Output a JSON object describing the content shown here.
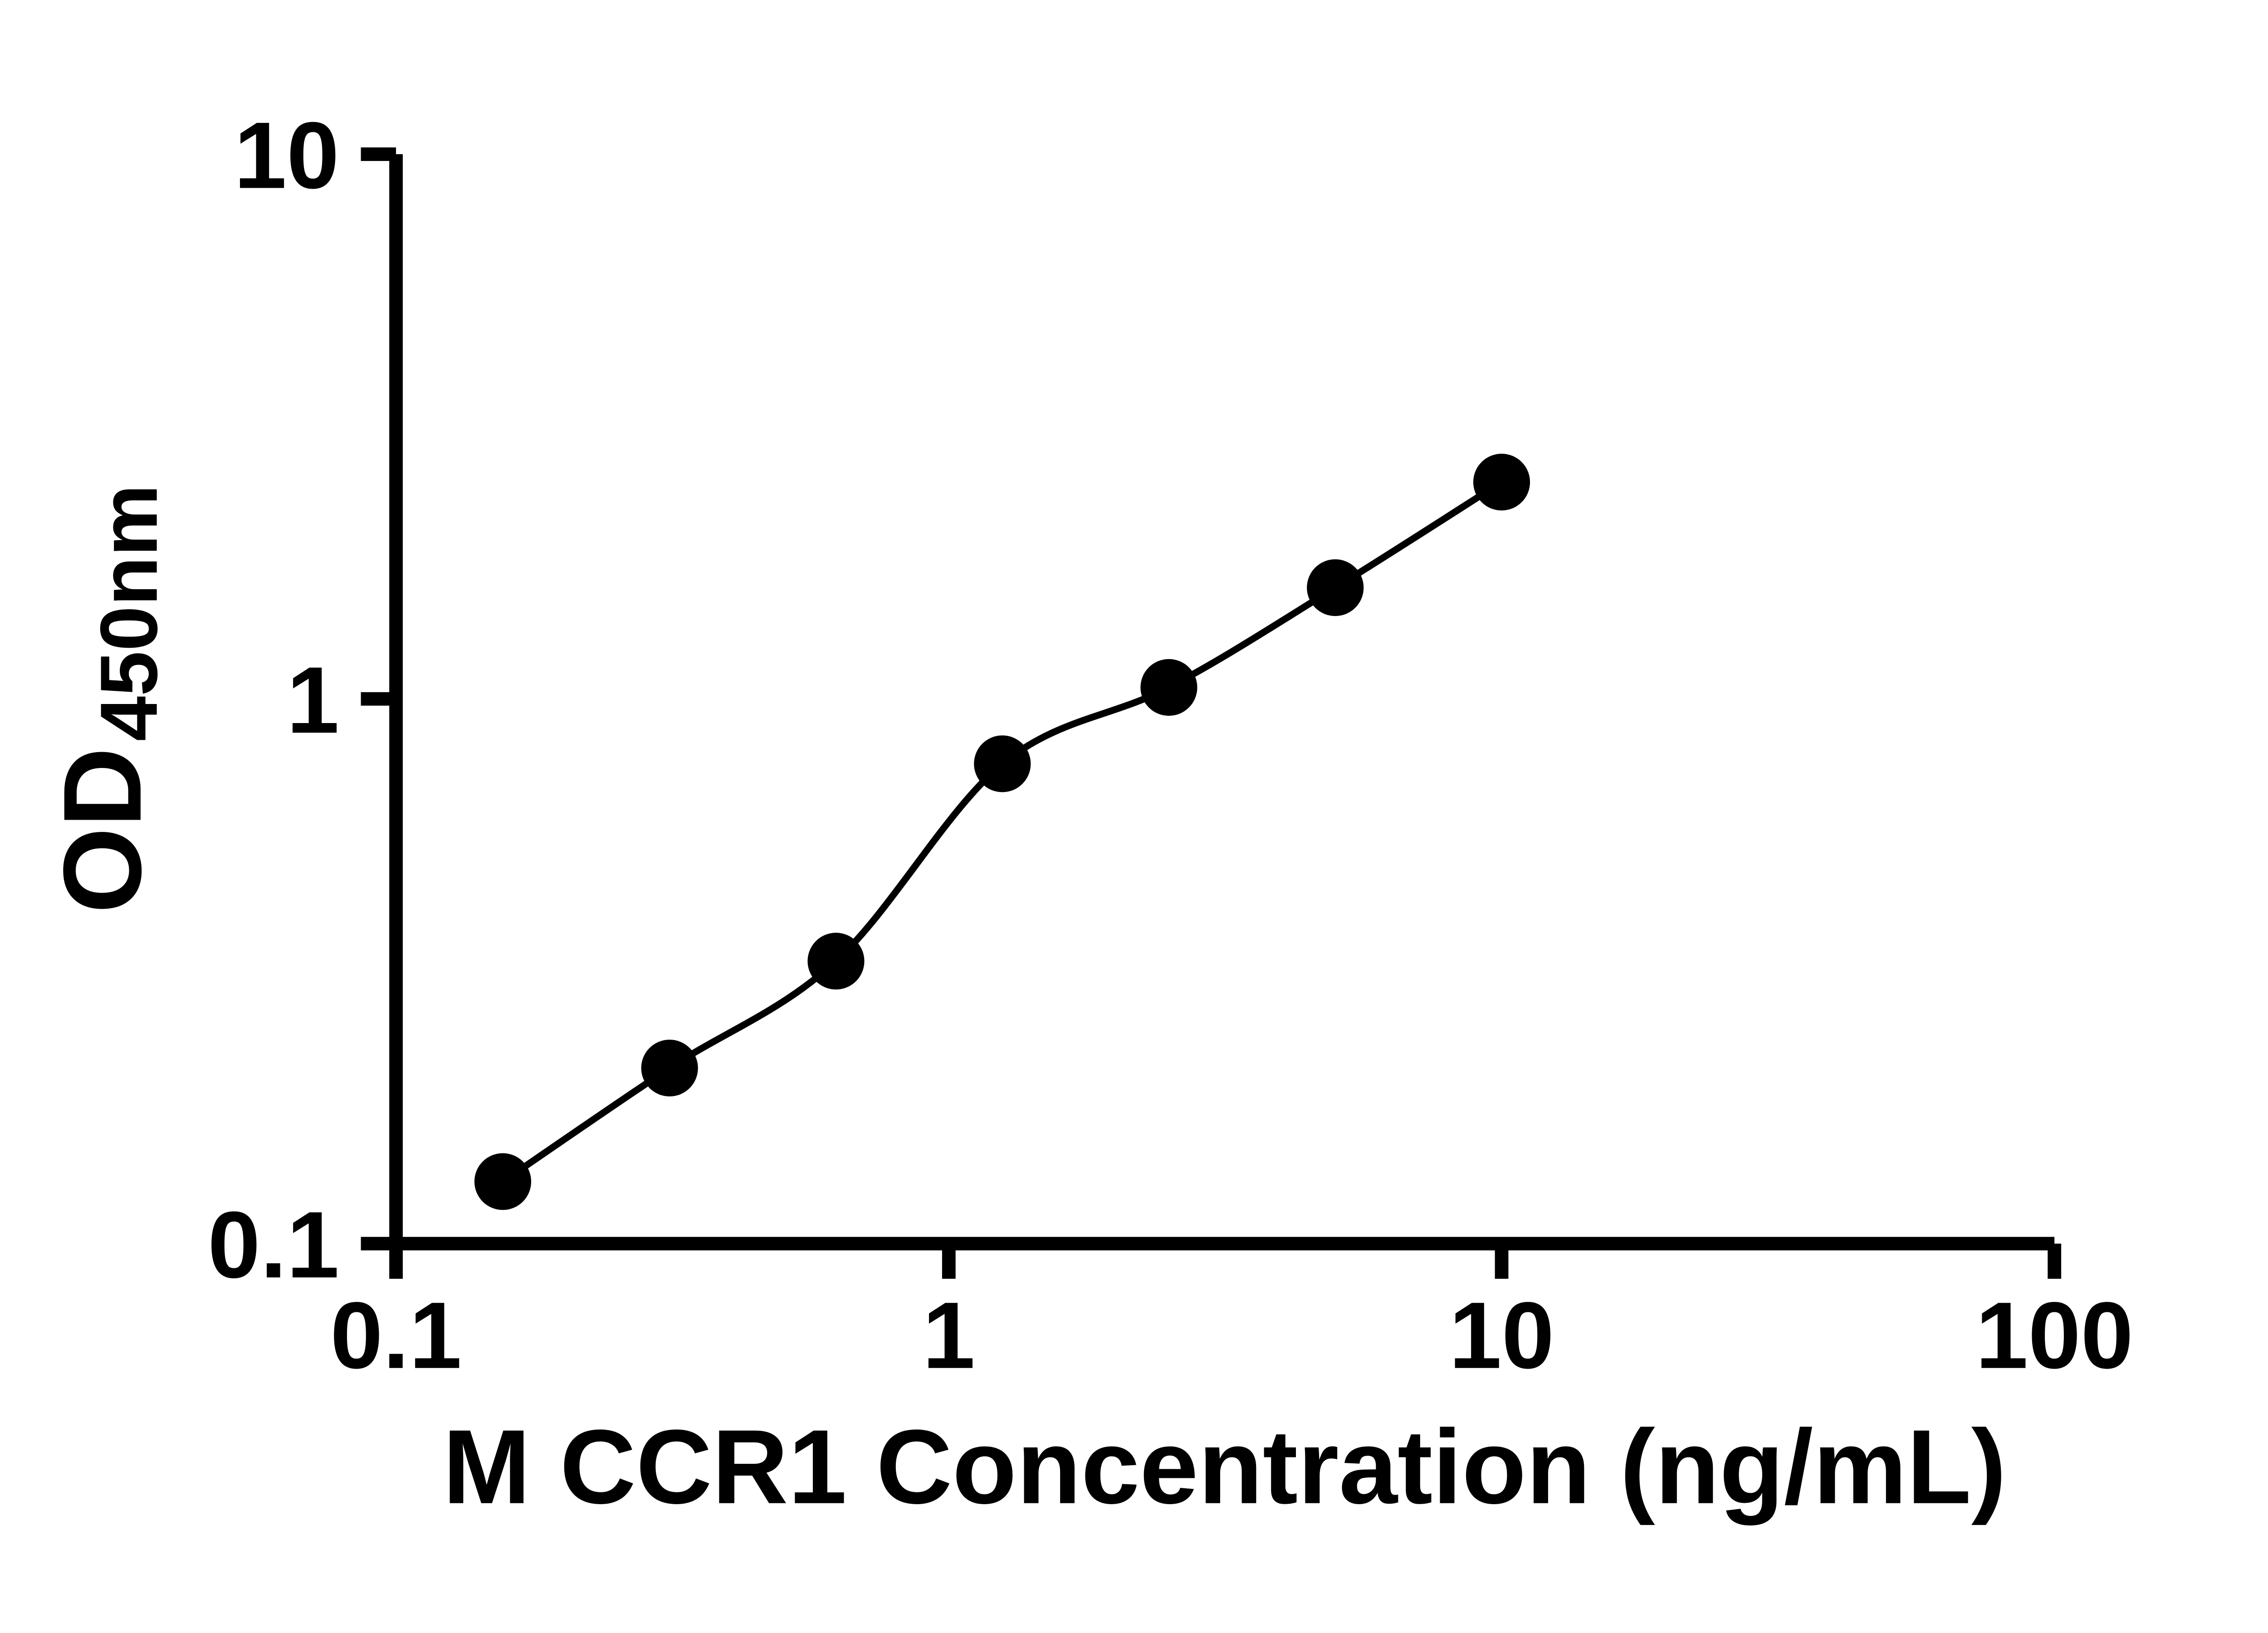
{
  "chart_data": {
    "type": "scatter",
    "title": "",
    "xlabel": "M CCR1 Concentration (ng/mL)",
    "ylabel_main": "OD",
    "ylabel_sub": "450nm",
    "x_scale": "log",
    "y_scale": "log",
    "xlim": [
      0.1,
      100
    ],
    "ylim": [
      0.1,
      10
    ],
    "grid": "off",
    "legend": "none",
    "marker_color": "#000000",
    "line_color": "#000000",
    "background_color": "#ffffff",
    "x_ticks": [
      {
        "value": 0.1,
        "label": "0.1"
      },
      {
        "value": 1,
        "label": "1"
      },
      {
        "value": 10,
        "label": "10"
      },
      {
        "value": 100,
        "label": "100"
      }
    ],
    "y_ticks": [
      {
        "value": 0.1,
        "label": "0.1"
      },
      {
        "value": 1,
        "label": "1"
      },
      {
        "value": 10,
        "label": "10"
      }
    ],
    "points": [
      {
        "x": 0.156,
        "y": 0.13
      },
      {
        "x": 0.3125,
        "y": 0.21
      },
      {
        "x": 0.625,
        "y": 0.33
      },
      {
        "x": 1.25,
        "y": 0.76
      },
      {
        "x": 2.5,
        "y": 1.05
      },
      {
        "x": 5,
        "y": 1.6
      },
      {
        "x": 10,
        "y": 2.5
      }
    ],
    "trendline": "smooth fit through points"
  }
}
